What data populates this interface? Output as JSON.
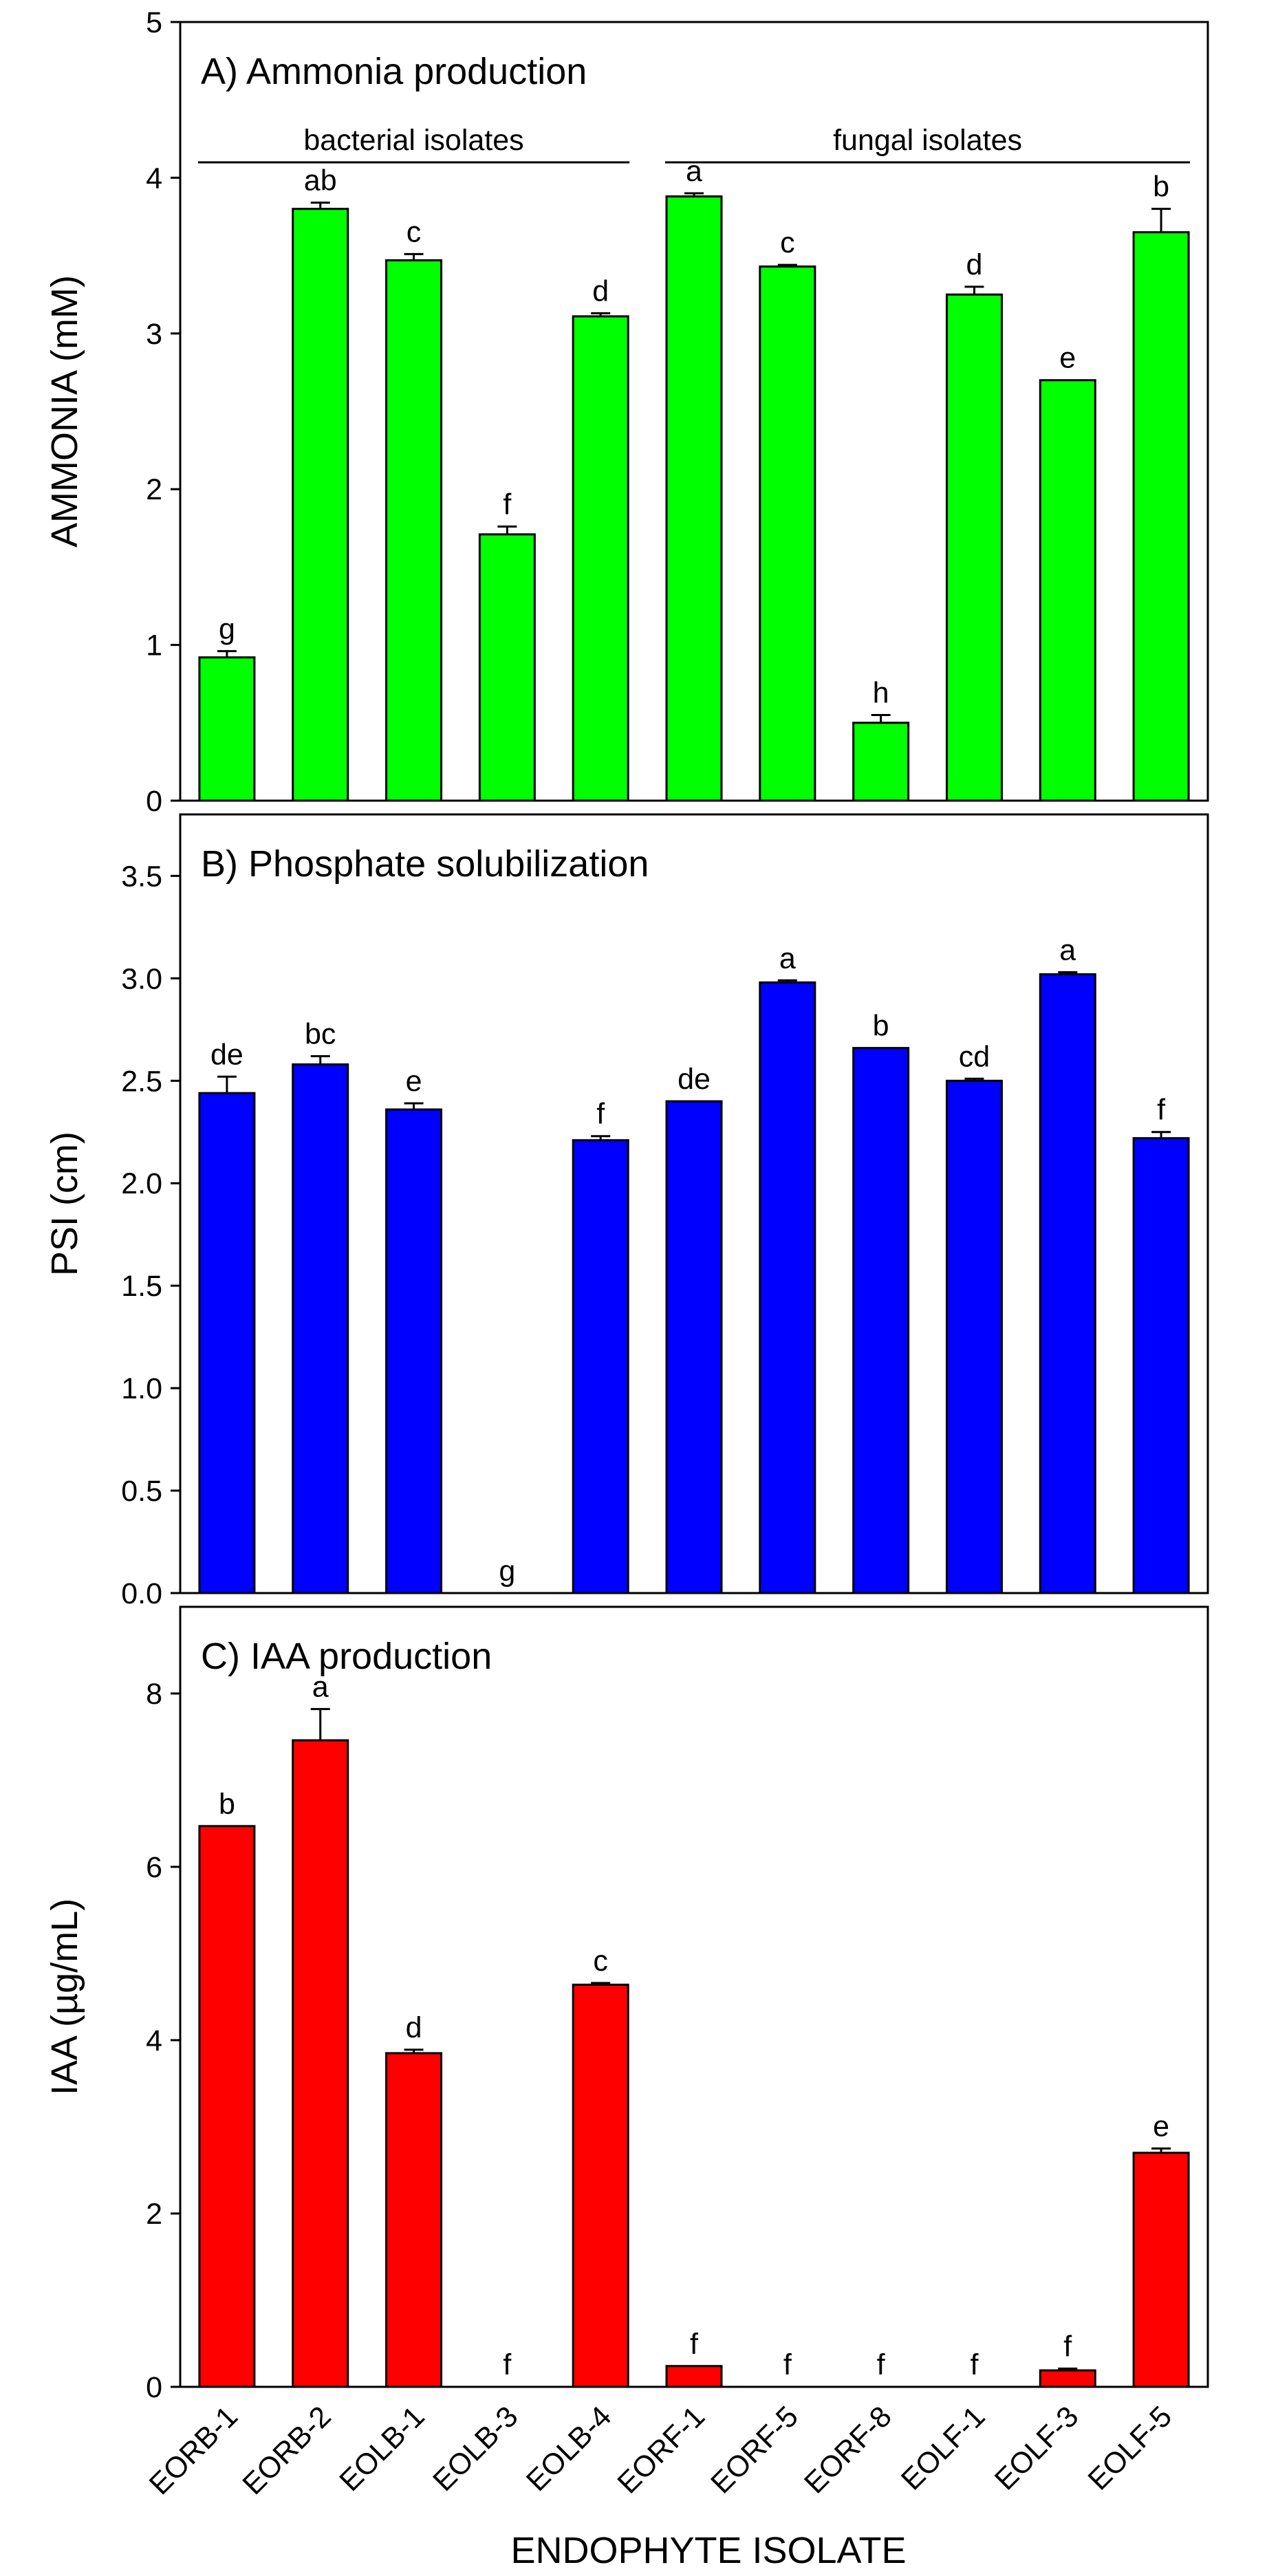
{
  "chart_data": [
    {
      "type": "bar",
      "panel": "A",
      "title": "A) Ammonia production",
      "ylabel": "AMMONIA (mM)",
      "xlabel": "",
      "ylim": [
        0,
        5
      ],
      "yticks": [
        0,
        1,
        2,
        3,
        4,
        5
      ],
      "ytick_labels": [
        "0",
        "1",
        "2",
        "3",
        "4",
        "5"
      ],
      "color": "#00ff00",
      "categories": [
        "EORB-1",
        "EORB-2",
        "EOLB-1",
        "EOLB-3",
        "EOLB-4",
        "EORF-1",
        "EORF-5",
        "EORF-8",
        "EOLF-1",
        "EOLF-3",
        "EOLF-5"
      ],
      "values": [
        0.92,
        3.8,
        3.47,
        1.71,
        3.11,
        3.88,
        3.43,
        0.5,
        3.25,
        2.7,
        3.65
      ],
      "errors": [
        0.04,
        0.04,
        0.04,
        0.05,
        0.02,
        0.02,
        0.01,
        0.05,
        0.05,
        0.0,
        0.15
      ],
      "letters": [
        "g",
        "ab",
        "c",
        "f",
        "d",
        "a",
        "c",
        "h",
        "d",
        "e",
        "b"
      ],
      "groups": [
        {
          "label": "bacterial isolates",
          "from": 0,
          "to": 4
        },
        {
          "label": "fungal isolates",
          "from": 5,
          "to": 10
        }
      ]
    },
    {
      "type": "bar",
      "panel": "B",
      "title": "B) Phosphate solubilization",
      "ylabel": "PSI (cm)",
      "xlabel": "",
      "ylim": [
        0,
        3.8
      ],
      "yticks": [
        0,
        0.5,
        1,
        1.5,
        2,
        2.5,
        3,
        3.5
      ],
      "ytick_labels": [
        "0.0",
        "0.5",
        "1.0",
        "1.5",
        "2.0",
        "2.5",
        "3.0",
        "3.5"
      ],
      "color": "#0000ff",
      "categories": [
        "EORB-1",
        "EORB-2",
        "EOLB-1",
        "EOLB-3",
        "EOLB-4",
        "EORF-1",
        "EORF-5",
        "EORF-8",
        "EOLF-1",
        "EOLF-3",
        "EOLF-5"
      ],
      "values": [
        2.44,
        2.58,
        2.36,
        0,
        2.21,
        2.4,
        2.98,
        2.66,
        2.5,
        3.02,
        2.22
      ],
      "errors": [
        0.08,
        0.04,
        0.03,
        0,
        0.02,
        0.0,
        0.01,
        0.0,
        0.01,
        0.01,
        0.03
      ],
      "letters": [
        "de",
        "bc",
        "e",
        "g",
        "f",
        "de",
        "a",
        "b",
        "cd",
        "a",
        "f"
      ]
    },
    {
      "type": "bar",
      "panel": "C",
      "title": "C) IAA production",
      "ylabel": "IAA (µg/mL)",
      "xlabel": "ENDOPHYTE ISOLATE",
      "ylim": [
        0,
        9
      ],
      "yticks": [
        0,
        2,
        4,
        6,
        8
      ],
      "ytick_labels": [
        "0",
        "2",
        "4",
        "6",
        "8"
      ],
      "color": "#ff0000",
      "categories": [
        "EORB-1",
        "EORB-2",
        "EOLB-1",
        "EOLB-3",
        "EOLB-4",
        "EORF-1",
        "EORF-5",
        "EORF-8",
        "EOLF-1",
        "EOLF-3",
        "EOLF-5"
      ],
      "values": [
        6.47,
        7.46,
        3.85,
        0,
        4.64,
        0.24,
        0,
        0,
        0,
        0.19,
        2.7
      ],
      "errors": [
        0.0,
        0.36,
        0.04,
        0,
        0.02,
        0.0,
        0,
        0,
        0,
        0.02,
        0.05
      ],
      "letters": [
        "b",
        "a",
        "d",
        "f",
        "c",
        "f",
        "f",
        "f",
        "f",
        "f",
        "e"
      ]
    }
  ]
}
